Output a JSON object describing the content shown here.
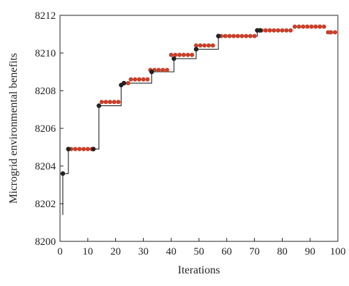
{
  "chart_data": {
    "type": "scatter",
    "title": "",
    "xlabel": "Iterations",
    "ylabel": "Microgrid environmental benefits",
    "xlim": [
      0,
      100
    ],
    "ylim": [
      8200,
      8212
    ],
    "xticks": [
      0,
      10,
      20,
      30,
      40,
      50,
      60,
      70,
      80,
      90,
      100
    ],
    "yticks": [
      8200,
      8202,
      8204,
      8206,
      8208,
      8210,
      8212
    ],
    "grid": false,
    "legend": "none",
    "series": [
      {
        "color": "#c8402a",
        "style": "markers",
        "x": [
          4,
          5.5,
          7,
          8.5,
          10,
          11.5,
          15,
          16.5,
          18,
          19.5,
          21,
          23,
          24.5,
          25.5,
          27,
          28.5,
          30,
          31.5,
          32.5,
          34,
          35.5,
          37,
          38.5,
          40,
          41.5,
          43,
          44.5,
          46,
          47.5,
          49,
          50.5,
          52,
          53.5,
          55,
          58,
          59.5,
          61,
          62.5,
          64,
          65.5,
          67,
          68.5,
          70,
          72.5,
          74,
          75.5,
          77,
          78.5,
          80,
          81.5,
          83,
          84.5,
          86,
          87.5,
          89,
          90.5,
          92,
          93.5,
          95,
          96.5,
          97.5,
          99
        ],
        "y": [
          8204.9,
          8204.9,
          8204.9,
          8204.9,
          8204.9,
          8204.9,
          8207.4,
          8207.4,
          8207.4,
          8207.4,
          8207.4,
          8208.4,
          8208.4,
          8208.6,
          8208.6,
          8208.6,
          8208.6,
          8208.6,
          8209.1,
          8209.1,
          8209.1,
          8209.1,
          8209.1,
          8209.9,
          8209.9,
          8209.9,
          8209.9,
          8209.9,
          8209.9,
          8210.4,
          8210.4,
          8210.4,
          8210.4,
          8210.4,
          8210.9,
          8210.9,
          8210.9,
          8210.9,
          8210.9,
          8210.9,
          8210.9,
          8210.9,
          8210.9,
          8211.2,
          8211.2,
          8211.2,
          8211.2,
          8211.2,
          8211.2,
          8211.2,
          8211.2,
          8211.4,
          8211.4,
          8211.4,
          8211.4,
          8211.4,
          8211.4,
          8211.4,
          8211.4,
          8211.1,
          8211.1,
          8211.1
        ]
      },
      {
        "color": "#222222",
        "style": "markers-with-line",
        "x": [
          1,
          3,
          12,
          14,
          22,
          23,
          33,
          41,
          49,
          57,
          71,
          72
        ],
        "y": [
          8203.6,
          8204.9,
          8204.9,
          8207.2,
          8208.3,
          8208.4,
          8209.0,
          8209.7,
          8210.2,
          8210.9,
          8211.2,
          8211.2
        ]
      }
    ],
    "line_start": [
      1,
      8201.4
    ]
  }
}
